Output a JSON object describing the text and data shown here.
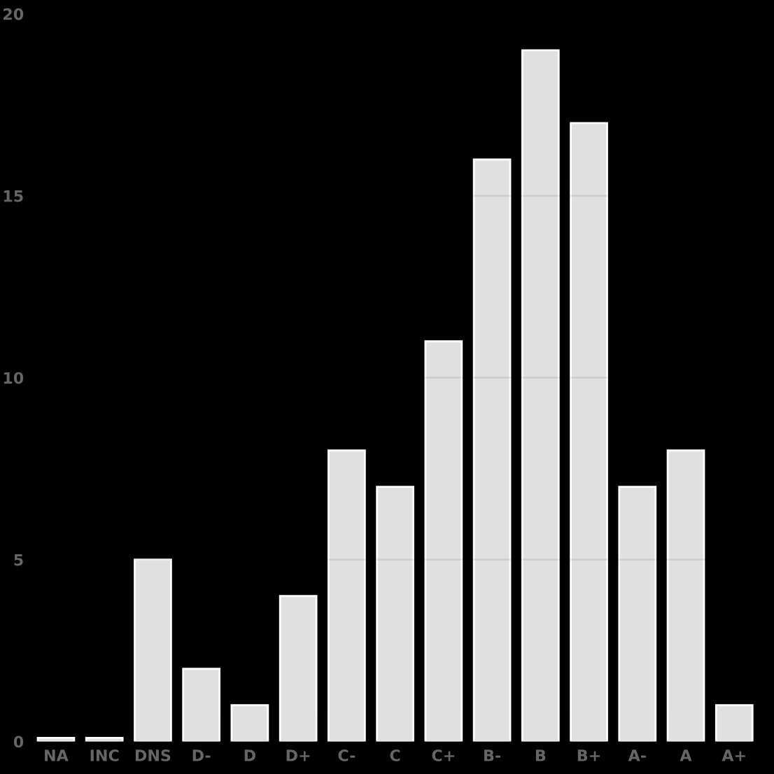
{
  "chart_data": {
    "type": "bar",
    "categories": [
      "NA",
      "INC",
      "DNS",
      "D-",
      "D",
      "D+",
      "C-",
      "C",
      "C+",
      "B-",
      "B",
      "B+",
      "A-",
      "A",
      "A+"
    ],
    "values": [
      0.1,
      0.1,
      5,
      2,
      1,
      4,
      8,
      7,
      11,
      16,
      19,
      17,
      7,
      8,
      1
    ],
    "color": "#e0e0e0",
    "ylim": [
      0,
      20
    ],
    "yticks": [
      0,
      5,
      10,
      15,
      20
    ],
    "grid": "y"
  }
}
